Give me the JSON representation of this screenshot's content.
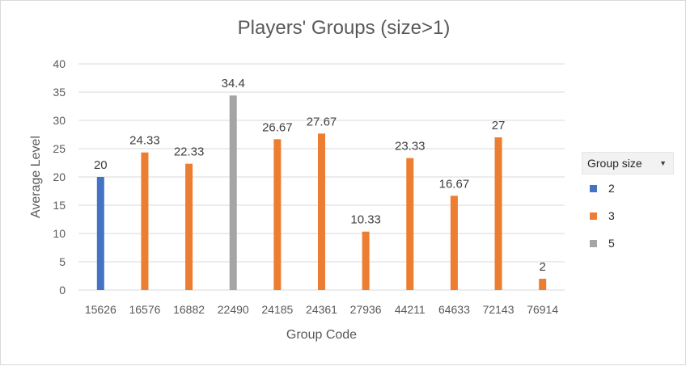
{
  "chart_data": {
    "type": "bar",
    "title": "Players' Groups (size>1)",
    "xlabel": "Group Code",
    "ylabel": "Average Level",
    "ylim": [
      0,
      40
    ],
    "yticks": [
      0,
      5,
      10,
      15,
      20,
      25,
      30,
      35,
      40
    ],
    "grid": true,
    "legend_position": "right",
    "legend_title": "Group size",
    "categories": [
      "15626",
      "16576",
      "16882",
      "22490",
      "24185",
      "24361",
      "27936",
      "44211",
      "64633",
      "72143",
      "76914"
    ],
    "series": [
      {
        "name": "2",
        "color": "#4472c4",
        "values": [
          20,
          null,
          null,
          null,
          null,
          null,
          null,
          null,
          null,
          null,
          null
        ]
      },
      {
        "name": "3",
        "color": "#ed7d31",
        "values": [
          null,
          24.33,
          22.33,
          null,
          26.67,
          27.67,
          10.33,
          23.33,
          16.67,
          27,
          2
        ]
      },
      {
        "name": "5",
        "color": "#a5a5a5",
        "values": [
          null,
          null,
          null,
          34.4,
          null,
          null,
          null,
          null,
          null,
          null,
          null
        ]
      }
    ]
  },
  "legend": {
    "title": "Group size",
    "items": [
      {
        "label": "2",
        "color": "#4472c4"
      },
      {
        "label": "3",
        "color": "#ed7d31"
      },
      {
        "label": "5",
        "color": "#a5a5a5"
      }
    ]
  }
}
